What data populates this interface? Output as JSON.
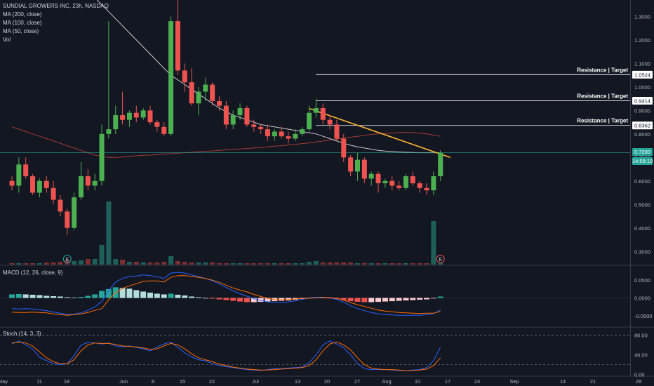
{
  "header": {
    "title": "SUNDIAL GROWERS INC, 23h, NASDAQ",
    "indicators": [
      "MA (200, close)",
      "MA (100, close)",
      "MA (50, close)",
      "Vol"
    ]
  },
  "colors": {
    "background": "#131722",
    "up": "#26a69a",
    "up_body": "#4caf50",
    "down": "#ef5350",
    "ma200": "#a33b35",
    "ma50": "#c8c8c8",
    "trendline": "#f7b234",
    "macd": "#2962ff",
    "signal": "#ff6d00",
    "stoch_k": "#2962ff",
    "stoch_d": "#ff6d00"
  },
  "chart_data": {
    "type": "candlestick",
    "price_axis": {
      "ticks": [
        "1.3000",
        "1.2000",
        "1.1000",
        "1.0000",
        "0.9000",
        "0.8000",
        "0.7000",
        "0.6000",
        "0.5000",
        "0.4000",
        "0.3000"
      ],
      "ylim": [
        0.244,
        1.37
      ]
    },
    "time_axis": {
      "ticks": [
        "May",
        "11",
        "18",
        "Jun",
        "8",
        "15",
        "22",
        "Jul",
        "13",
        "20",
        "27",
        "Aug",
        "10",
        "17",
        "24",
        "Sep",
        "14",
        "21",
        "28"
      ]
    },
    "current_price": {
      "value": "0.7200",
      "countdown": "14:58:19"
    },
    "levels": [
      {
        "label": "Resistance | Target",
        "value": 1.0524,
        "text": "1.0524"
      },
      {
        "label": "Resistance | Target",
        "value": 0.9414,
        "text": "0.9414"
      },
      {
        "label": "Resistance | Target",
        "value": 0.8362,
        "text": "0.8362"
      }
    ],
    "trendline": {
      "from": [
        43,
        0.95
      ],
      "to": [
        62,
        0.7
      ]
    },
    "candles": [
      [
        0.6,
        0.62,
        0.56,
        0.58
      ],
      [
        0.58,
        0.7,
        0.55,
        0.67
      ],
      [
        0.67,
        0.7,
        0.61,
        0.62
      ],
      [
        0.62,
        0.63,
        0.54,
        0.55
      ],
      [
        0.55,
        0.61,
        0.53,
        0.6
      ],
      [
        0.6,
        0.62,
        0.55,
        0.57
      ],
      [
        0.57,
        0.6,
        0.5,
        0.52
      ],
      [
        0.52,
        0.54,
        0.45,
        0.47
      ],
      [
        0.47,
        0.48,
        0.37,
        0.4
      ],
      [
        0.4,
        0.55,
        0.39,
        0.53
      ],
      [
        0.53,
        0.68,
        0.52,
        0.62
      ],
      [
        0.62,
        0.65,
        0.56,
        0.58
      ],
      [
        0.58,
        0.63,
        0.56,
        0.6
      ],
      [
        0.6,
        0.84,
        0.58,
        0.8
      ],
      [
        0.8,
        1.28,
        0.78,
        0.82
      ],
      [
        0.82,
        0.92,
        0.8,
        0.88
      ],
      [
        0.88,
        0.98,
        0.84,
        0.86
      ],
      [
        0.86,
        0.9,
        0.83,
        0.89
      ],
      [
        0.89,
        0.92,
        0.85,
        0.87
      ],
      [
        0.87,
        0.91,
        0.86,
        0.9
      ],
      [
        0.9,
        0.92,
        0.84,
        0.85
      ],
      [
        0.85,
        0.86,
        0.81,
        0.83
      ],
      [
        0.83,
        0.85,
        0.79,
        0.8
      ],
      [
        0.8,
        1.3,
        0.79,
        1.28
      ],
      [
        1.28,
        1.37,
        1.05,
        1.07
      ],
      [
        1.07,
        1.1,
        0.98,
        1.02
      ],
      [
        1.02,
        1.08,
        0.92,
        0.93
      ],
      [
        0.93,
        1.0,
        0.88,
        0.98
      ],
      [
        0.98,
        1.04,
        0.94,
        1.01
      ],
      [
        1.01,
        1.02,
        0.92,
        0.94
      ],
      [
        0.94,
        0.96,
        0.9,
        0.92
      ],
      [
        0.92,
        0.94,
        0.82,
        0.84
      ],
      [
        0.84,
        0.9,
        0.82,
        0.88
      ],
      [
        0.88,
        0.93,
        0.86,
        0.91
      ],
      [
        0.91,
        0.92,
        0.83,
        0.84
      ],
      [
        0.84,
        0.86,
        0.81,
        0.83
      ],
      [
        0.83,
        0.84,
        0.8,
        0.82
      ],
      [
        0.82,
        0.84,
        0.77,
        0.79
      ],
      [
        0.79,
        0.82,
        0.77,
        0.81
      ],
      [
        0.81,
        0.83,
        0.78,
        0.79
      ],
      [
        0.79,
        0.81,
        0.76,
        0.78
      ],
      [
        0.78,
        0.82,
        0.77,
        0.8
      ],
      [
        0.8,
        0.83,
        0.79,
        0.82
      ],
      [
        0.82,
        0.92,
        0.81,
        0.89
      ],
      [
        0.89,
        0.95,
        0.87,
        0.91
      ],
      [
        0.91,
        0.93,
        0.84,
        0.86
      ],
      [
        0.86,
        0.88,
        0.82,
        0.84
      ],
      [
        0.84,
        0.86,
        0.77,
        0.78
      ],
      [
        0.78,
        0.8,
        0.68,
        0.7
      ],
      [
        0.7,
        0.71,
        0.62,
        0.64
      ],
      [
        0.64,
        0.72,
        0.6,
        0.69
      ],
      [
        0.69,
        0.7,
        0.59,
        0.61
      ],
      [
        0.61,
        0.64,
        0.58,
        0.63
      ],
      [
        0.63,
        0.64,
        0.55,
        0.59
      ],
      [
        0.59,
        0.61,
        0.57,
        0.6
      ],
      [
        0.6,
        0.62,
        0.56,
        0.58
      ],
      [
        0.58,
        0.6,
        0.56,
        0.57
      ],
      [
        0.57,
        0.63,
        0.56,
        0.62
      ],
      [
        0.62,
        0.64,
        0.58,
        0.59
      ],
      [
        0.59,
        0.6,
        0.55,
        0.57
      ],
      [
        0.57,
        0.59,
        0.54,
        0.56
      ],
      [
        0.56,
        0.64,
        0.54,
        0.62
      ],
      [
        0.62,
        0.73,
        0.6,
        0.72
      ]
    ],
    "volumes": [
      2,
      2,
      2,
      2,
      2,
      3,
      3,
      4,
      6,
      5,
      6,
      8,
      8,
      28,
      90,
      8,
      7,
      4,
      4,
      3,
      3,
      3,
      4,
      12,
      5,
      4,
      3,
      3,
      3,
      3,
      2,
      2,
      2,
      2,
      2,
      2,
      2,
      2,
      2,
      2,
      2,
      2,
      2,
      4,
      5,
      3,
      3,
      3,
      3,
      3,
      2,
      2,
      2,
      2,
      2,
      2,
      2,
      2,
      2,
      2,
      2,
      62,
      2
    ],
    "ma200": [
      0.83,
      0.82,
      0.81,
      0.8,
      0.79,
      0.78,
      0.77,
      0.76,
      0.75,
      0.74,
      0.73,
      0.72,
      0.71,
      0.705,
      0.7,
      0.7,
      0.702,
      0.705,
      0.707,
      0.709,
      0.71,
      0.712,
      0.714,
      0.716,
      0.718,
      0.72,
      0.722,
      0.724,
      0.726,
      0.728,
      0.73,
      0.732,
      0.734,
      0.736,
      0.738,
      0.74,
      0.742,
      0.745,
      0.748,
      0.75,
      0.753,
      0.756,
      0.759,
      0.762,
      0.766,
      0.77,
      0.774,
      0.778,
      0.782,
      0.786,
      0.79,
      0.794,
      0.798,
      0.8,
      0.802,
      0.804,
      0.806,
      0.806,
      0.806,
      0.803,
      0.8,
      0.795,
      0.79
    ],
    "ma50": [
      null,
      null,
      null,
      null,
      null,
      null,
      null,
      null,
      null,
      null,
      null,
      null,
      1.38,
      1.35,
      1.32,
      1.29,
      1.26,
      1.23,
      1.2,
      1.17,
      1.14,
      1.11,
      1.08,
      1.05,
      1.03,
      1.01,
      0.99,
      0.97,
      0.95,
      0.93,
      0.91,
      0.895,
      0.88,
      0.87,
      0.86,
      0.85,
      0.84,
      0.835,
      0.83,
      0.825,
      0.82,
      0.815,
      0.81,
      0.805,
      0.8,
      0.79,
      0.78,
      0.77,
      0.76,
      0.752,
      0.745,
      0.74,
      0.735,
      0.73,
      0.727,
      0.725,
      0.723,
      0.722,
      0.721,
      0.72,
      0.72,
      0.72,
      0.72
    ],
    "events": [
      {
        "index": 8,
        "label": "E"
      },
      {
        "index": 62,
        "label": "E"
      }
    ],
    "macd_panel": {
      "title": "MACD (12, 26, close, 9)",
      "ticks": [
        "0.0500",
        "0.0000",
        "-0.0500"
      ],
      "ylim": [
        -0.08,
        0.09
      ],
      "histogram": [
        0.01,
        0.011,
        0.01,
        0.009,
        0.008,
        0.006,
        0.005,
        0.004,
        0.002,
        0.001,
        0.003,
        0.006,
        0.01,
        0.02,
        0.025,
        0.03,
        0.028,
        0.026,
        0.022,
        0.018,
        0.015,
        0.012,
        0.01,
        0.012,
        0.009,
        0.007,
        0.004,
        0.002,
        0.0,
        -0.002,
        -0.004,
        -0.006,
        -0.008,
        -0.01,
        -0.012,
        -0.012,
        -0.011,
        -0.01,
        -0.009,
        -0.008,
        -0.007,
        -0.005,
        -0.003,
        0.001,
        0.002,
        0.001,
        -0.001,
        -0.003,
        -0.006,
        -0.009,
        -0.011,
        -0.012,
        -0.012,
        -0.011,
        -0.01,
        -0.009,
        -0.008,
        -0.007,
        -0.006,
        -0.005,
        -0.004,
        -0.001,
        0.004
      ],
      "macd": [
        -0.03,
        -0.031,
        -0.03,
        -0.031,
        -0.033,
        -0.036,
        -0.04,
        -0.043,
        -0.047,
        -0.046,
        -0.042,
        -0.035,
        -0.025,
        -0.01,
        0.02,
        0.045,
        0.055,
        0.06,
        0.062,
        0.065,
        0.063,
        0.06,
        0.055,
        0.07,
        0.072,
        0.07,
        0.065,
        0.06,
        0.055,
        0.048,
        0.04,
        0.03,
        0.02,
        0.012,
        0.005,
        -0.002,
        -0.007,
        -0.011,
        -0.013,
        -0.013,
        -0.011,
        -0.008,
        -0.004,
        0.0,
        0.002,
        0.002,
        0.0,
        -0.004,
        -0.012,
        -0.022,
        -0.03,
        -0.036,
        -0.041,
        -0.045,
        -0.047,
        -0.048,
        -0.049,
        -0.049,
        -0.049,
        -0.049,
        -0.047,
        -0.044,
        -0.034
      ],
      "signal": [
        -0.04,
        -0.041,
        -0.041,
        -0.04,
        -0.041,
        -0.042,
        -0.045,
        -0.047,
        -0.049,
        -0.047,
        -0.045,
        -0.041,
        -0.035,
        -0.03,
        -0.005,
        0.015,
        0.027,
        0.034,
        0.04,
        0.047,
        0.048,
        0.048,
        0.045,
        0.058,
        0.063,
        0.063,
        0.061,
        0.058,
        0.055,
        0.05,
        0.044,
        0.036,
        0.028,
        0.022,
        0.017,
        0.01,
        0.004,
        -0.001,
        -0.004,
        -0.005,
        -0.004,
        -0.003,
        -0.001,
        -0.001,
        0.0,
        0.001,
        0.001,
        -0.001,
        -0.006,
        -0.013,
        -0.019,
        -0.024,
        -0.029,
        -0.034,
        -0.037,
        -0.039,
        -0.041,
        -0.042,
        -0.043,
        -0.044,
        -0.043,
        -0.043,
        -0.038
      ]
    },
    "stoch_panel": {
      "title": "Stoch (14, 3, 3)",
      "ticks": [
        "80.00",
        "40.00",
        "0.00"
      ],
      "ylim": [
        -2,
        95
      ],
      "bands": [
        80,
        20
      ],
      "k": [
        62,
        68,
        60,
        52,
        35,
        28,
        22,
        20,
        22,
        38,
        60,
        65,
        64,
        62,
        64,
        58,
        56,
        58,
        55,
        52,
        48,
        56,
        62,
        66,
        55,
        44,
        36,
        30,
        28,
        22,
        18,
        16,
        14,
        12,
        10,
        9,
        8,
        10,
        12,
        12,
        13,
        14,
        15,
        24,
        40,
        60,
        68,
        62,
        54,
        40,
        22,
        12,
        10,
        10,
        10,
        9,
        8,
        8,
        9,
        10,
        14,
        28,
        56
      ],
      "d": [
        64,
        66,
        64,
        58,
        46,
        34,
        26,
        22,
        22,
        30,
        48,
        60,
        64,
        63,
        63,
        61,
        58,
        57,
        56,
        54,
        51,
        52,
        58,
        63,
        60,
        52,
        42,
        34,
        30,
        26,
        21,
        18,
        15,
        13,
        11,
        10,
        9,
        9,
        10,
        11,
        12,
        13,
        14,
        18,
        30,
        48,
        62,
        66,
        60,
        50,
        34,
        20,
        13,
        11,
        10,
        10,
        9,
        8,
        8,
        9,
        11,
        18,
        34
      ]
    }
  }
}
